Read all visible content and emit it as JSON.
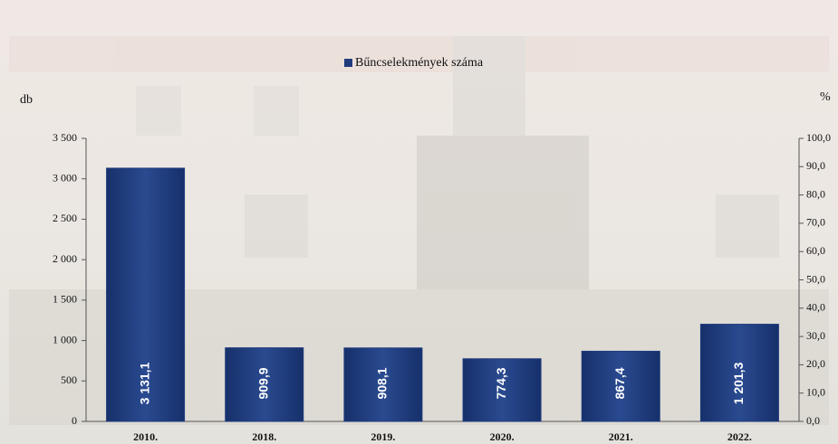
{
  "chart_data": {
    "type": "bar",
    "legend": "Bűncselekmények száma",
    "y_label": "db",
    "y2_label": "%",
    "categories": [
      "2010.",
      "2018.",
      "2019.",
      "2020.",
      "2021.",
      "2022."
    ],
    "values": [
      3131.1,
      909.9,
      908.1,
      774.3,
      867.4,
      1201.3
    ],
    "value_labels": [
      "3 131,1",
      "909,9",
      "908,1",
      "774,3",
      "867,4",
      "1 201,3"
    ],
    "color": "#1f3b7c",
    "ylim": [
      0,
      3500
    ],
    "yticks": [
      0,
      500,
      {
        "value": 1000,
        "label": "1 000"
      },
      {
        "value": 1500,
        "label": "1 500"
      },
      {
        "value": 2000,
        "label": "2 000"
      },
      {
        "value": 2500,
        "label": "2 500"
      },
      {
        "value": 3000,
        "label": "3 000"
      },
      {
        "value": 3500,
        "label": "3 500"
      }
    ],
    "y2lim": [
      0,
      100
    ],
    "y2ticks": [
      {
        "value": 0,
        "label": "0,0"
      },
      {
        "value": 10,
        "label": "10,0"
      },
      {
        "value": 20,
        "label": "20,0"
      },
      {
        "value": 30,
        "label": "30,0"
      },
      {
        "value": 40,
        "label": "40,0"
      },
      {
        "value": 50,
        "label": "50,0"
      },
      {
        "value": 60,
        "label": "60,0"
      },
      {
        "value": 70,
        "label": "70,0"
      },
      {
        "value": 80,
        "label": "80,0"
      },
      {
        "value": 90,
        "label": "90,0"
      },
      {
        "value": 100,
        "label": "100,0"
      }
    ]
  }
}
